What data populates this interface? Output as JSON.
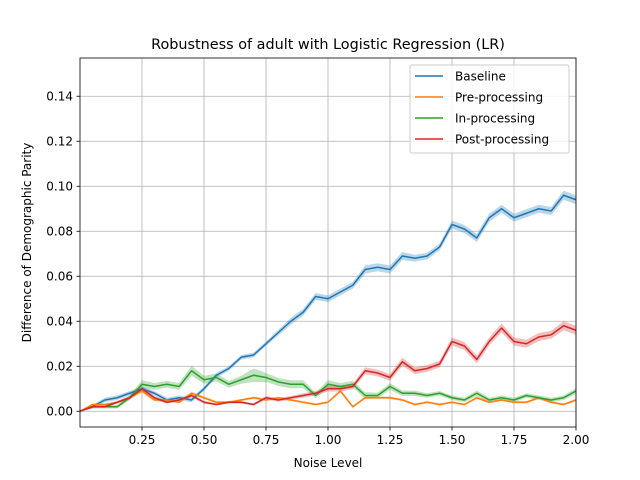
{
  "chart_data": {
    "type": "line",
    "title": "Robustness of adult with Logistic Regression (LR)",
    "xlabel": "Noise Level",
    "ylabel": "Difference of Demographic Parity",
    "xlim": [
      0.0,
      2.0
    ],
    "ylim": [
      -0.007,
      0.157
    ],
    "xticks": [
      0.25,
      0.5,
      0.75,
      1.0,
      1.25,
      1.5,
      1.75,
      2.0
    ],
    "xtick_labels": [
      "0.25",
      "0.50",
      "0.75",
      "1.00",
      "1.25",
      "1.50",
      "1.75",
      "2.00"
    ],
    "yticks": [
      0.0,
      0.02,
      0.04,
      0.06,
      0.08,
      0.1,
      0.12,
      0.14
    ],
    "ytick_labels": [
      "0.00",
      "0.02",
      "0.04",
      "0.06",
      "0.08",
      "0.10",
      "0.12",
      "0.14"
    ],
    "grid": true,
    "legend_position": "top-right",
    "x": [
      0.0,
      0.05,
      0.1,
      0.15,
      0.2,
      0.25,
      0.3,
      0.35,
      0.4,
      0.45,
      0.5,
      0.55,
      0.6,
      0.65,
      0.7,
      0.75,
      0.8,
      0.85,
      0.9,
      0.95,
      1.0,
      1.05,
      1.1,
      1.15,
      1.2,
      1.25,
      1.3,
      1.35,
      1.4,
      1.45,
      1.5,
      1.55,
      1.6,
      1.65,
      1.7,
      1.75,
      1.8,
      1.85,
      1.9,
      1.95,
      2.0
    ],
    "series": [
      {
        "name": "Baseline",
        "color": "#1f77b4",
        "values": [
          0.0,
          0.002,
          0.005,
          0.006,
          0.008,
          0.01,
          0.008,
          0.005,
          0.006,
          0.005,
          0.01,
          0.016,
          0.019,
          0.024,
          0.025,
          0.03,
          0.035,
          0.04,
          0.044,
          0.051,
          0.05,
          0.053,
          0.056,
          0.063,
          0.064,
          0.063,
          0.069,
          0.068,
          0.069,
          0.073,
          0.083,
          0.081,
          0.077,
          0.086,
          0.09,
          0.086,
          0.088,
          0.09,
          0.089,
          0.096,
          0.094
        ],
        "band": [
          0.0,
          0.0008,
          0.001,
          0.001,
          0.001,
          0.001,
          0.001,
          0.001,
          0.001,
          0.001,
          0.001,
          0.001,
          0.001,
          0.001,
          0.001,
          0.001,
          0.0012,
          0.0015,
          0.0015,
          0.0015,
          0.0015,
          0.0015,
          0.0015,
          0.0018,
          0.0018,
          0.0018,
          0.0018,
          0.0015,
          0.0015,
          0.0015,
          0.0018,
          0.0018,
          0.0018,
          0.0018,
          0.0018,
          0.0018,
          0.0018,
          0.0018,
          0.0018,
          0.002,
          0.002
        ]
      },
      {
        "name": "Pre-processing",
        "color": "#ff7f0e",
        "values": [
          0.0,
          0.003,
          0.003,
          0.004,
          0.006,
          0.009,
          0.005,
          0.005,
          0.004,
          0.008,
          0.006,
          0.004,
          0.004,
          0.005,
          0.006,
          0.005,
          0.006,
          0.005,
          0.004,
          0.003,
          0.004,
          0.009,
          0.002,
          0.006,
          0.006,
          0.006,
          0.005,
          0.003,
          0.004,
          0.003,
          0.004,
          0.003,
          0.006,
          0.004,
          0.005,
          0.004,
          0.004,
          0.006,
          0.004,
          0.003,
          0.005
        ],
        "band": [
          0.0,
          0.0005,
          0.0005,
          0.0005,
          0.0006,
          0.0008,
          0.0006,
          0.0006,
          0.0006,
          0.0007,
          0.0006,
          0.0005,
          0.0005,
          0.0005,
          0.0006,
          0.0005,
          0.0006,
          0.0005,
          0.0005,
          0.0005,
          0.0005,
          0.0008,
          0.0005,
          0.0006,
          0.0006,
          0.0006,
          0.0005,
          0.0005,
          0.0005,
          0.0005,
          0.0005,
          0.0005,
          0.0006,
          0.0005,
          0.0005,
          0.0005,
          0.0005,
          0.0006,
          0.0005,
          0.0005,
          0.0006
        ]
      },
      {
        "name": "In-processing",
        "color": "#2ca02c",
        "values": [
          0.0,
          0.002,
          0.002,
          0.002,
          0.006,
          0.012,
          0.011,
          0.012,
          0.011,
          0.018,
          0.014,
          0.015,
          0.012,
          0.014,
          0.016,
          0.015,
          0.013,
          0.012,
          0.012,
          0.007,
          0.012,
          0.011,
          0.012,
          0.007,
          0.007,
          0.011,
          0.008,
          0.008,
          0.007,
          0.008,
          0.006,
          0.005,
          0.008,
          0.005,
          0.006,
          0.005,
          0.007,
          0.006,
          0.005,
          0.006,
          0.009
        ],
        "band": [
          0.0,
          0.0008,
          0.0008,
          0.0008,
          0.001,
          0.0018,
          0.0015,
          0.0015,
          0.0015,
          0.0022,
          0.0018,
          0.0018,
          0.0015,
          0.0018,
          0.003,
          0.002,
          0.0018,
          0.0018,
          0.0018,
          0.0012,
          0.0018,
          0.0015,
          0.0015,
          0.0015,
          0.0012,
          0.0015,
          0.0012,
          0.0012,
          0.001,
          0.001,
          0.001,
          0.001,
          0.0012,
          0.001,
          0.001,
          0.001,
          0.001,
          0.001,
          0.001,
          0.001,
          0.0012
        ]
      },
      {
        "name": "Post-processing",
        "color": "#d62728",
        "values": [
          0.0,
          0.002,
          0.002,
          0.004,
          0.006,
          0.01,
          0.006,
          0.004,
          0.005,
          0.007,
          0.004,
          0.003,
          0.004,
          0.004,
          0.003,
          0.006,
          0.005,
          0.006,
          0.007,
          0.008,
          0.01,
          0.01,
          0.011,
          0.018,
          0.017,
          0.015,
          0.022,
          0.018,
          0.019,
          0.021,
          0.031,
          0.029,
          0.023,
          0.031,
          0.037,
          0.031,
          0.03,
          0.033,
          0.034,
          0.038,
          0.036
        ],
        "band": [
          0.0,
          0.0005,
          0.0005,
          0.0006,
          0.0008,
          0.001,
          0.0008,
          0.0006,
          0.0006,
          0.0008,
          0.0006,
          0.0005,
          0.0006,
          0.0006,
          0.0005,
          0.0008,
          0.0008,
          0.0008,
          0.001,
          0.001,
          0.0012,
          0.0012,
          0.0012,
          0.0015,
          0.0015,
          0.0015,
          0.0018,
          0.0015,
          0.0015,
          0.0015,
          0.0018,
          0.0018,
          0.0018,
          0.0018,
          0.002,
          0.0018,
          0.0018,
          0.0018,
          0.0018,
          0.002,
          0.002
        ]
      }
    ]
  }
}
